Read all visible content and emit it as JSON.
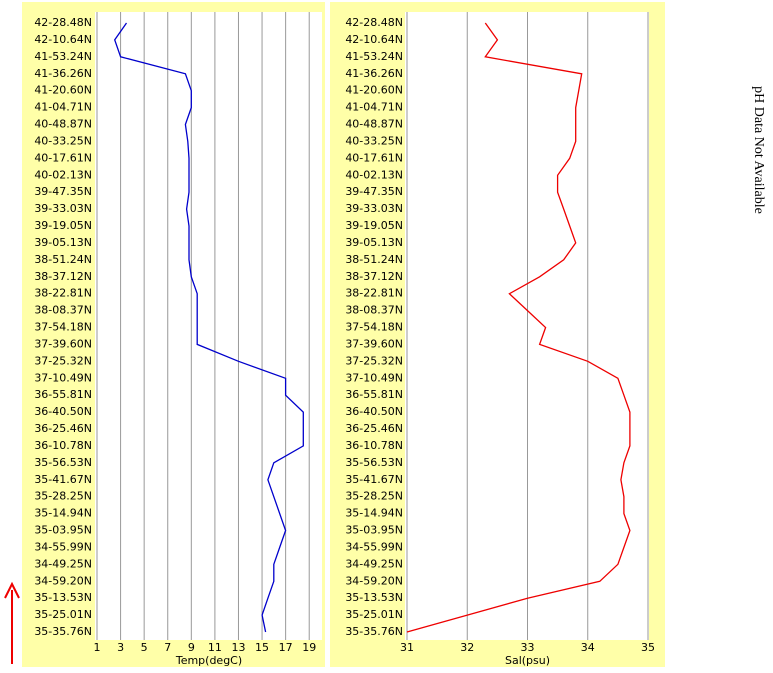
{
  "chart_data": [
    {
      "type": "line",
      "x_label": "Temp(degC)",
      "orientation": "horizontal",
      "color": "#0000cc",
      "grid": true,
      "xlim": [
        1,
        20
      ],
      "xticks": [
        1,
        3,
        5,
        7,
        9,
        11,
        13,
        15,
        17,
        19
      ],
      "categories": [
        "42-28.48N",
        "42-10.64N",
        "41-53.24N",
        "41-36.26N",
        "41-20.60N",
        "41-04.71N",
        "40-48.87N",
        "40-33.25N",
        "40-17.61N",
        "40-02.13N",
        "39-47.35N",
        "39-33.03N",
        "39-19.05N",
        "39-05.13N",
        "38-51.24N",
        "38-37.12N",
        "38-22.81N",
        "38-08.37N",
        "37-54.18N",
        "37-39.60N",
        "37-25.32N",
        "37-10.49N",
        "36-55.81N",
        "36-40.50N",
        "36-25.46N",
        "36-10.78N",
        "35-56.53N",
        "35-41.67N",
        "35-28.25N",
        "35-14.94N",
        "35-03.95N",
        "34-55.99N",
        "34-49.25N",
        "34-59.20N",
        "35-13.53N",
        "35-25.01N",
        "35-35.76N"
      ],
      "values": [
        3.5,
        2.5,
        3,
        8.5,
        9,
        9,
        8.5,
        8.7,
        8.8,
        8.8,
        8.8,
        8.6,
        8.8,
        8.8,
        8.8,
        9,
        9.5,
        9.5,
        9.5,
        9.5,
        13,
        17,
        17,
        18.5,
        18.5,
        18.5,
        16,
        15.5,
        16,
        16.5,
        17,
        16.5,
        16,
        16,
        15.5,
        15,
        15.3
      ]
    },
    {
      "type": "line",
      "x_label": "Sal(psu)",
      "orientation": "horizontal",
      "color": "#ee0000",
      "grid": true,
      "xlim": [
        31,
        35
      ],
      "xticks": [
        31,
        32,
        33,
        34,
        35
      ],
      "categories": [
        "42-28.48N",
        "42-10.64N",
        "41-53.24N",
        "41-36.26N",
        "41-20.60N",
        "41-04.71N",
        "40-48.87N",
        "40-33.25N",
        "40-17.61N",
        "40-02.13N",
        "39-47.35N",
        "39-33.03N",
        "39-19.05N",
        "39-05.13N",
        "38-51.24N",
        "38-37.12N",
        "38-22.81N",
        "38-08.37N",
        "37-54.18N",
        "37-39.60N",
        "37-25.32N",
        "37-10.49N",
        "36-55.81N",
        "36-40.50N",
        "36-25.46N",
        "36-10.78N",
        "35-56.53N",
        "35-41.67N",
        "35-28.25N",
        "35-14.94N",
        "35-03.95N",
        "34-55.99N",
        "34-49.25N",
        "34-59.20N",
        "35-13.53N",
        "35-25.01N",
        "35-35.76N"
      ],
      "values": [
        32.3,
        32.5,
        32.3,
        33.9,
        33.85,
        33.8,
        33.8,
        33.8,
        33.7,
        33.5,
        33.5,
        33.6,
        33.7,
        33.8,
        33.6,
        33.2,
        32.7,
        33.0,
        33.3,
        33.2,
        34.0,
        34.5,
        34.6,
        34.7,
        34.7,
        34.7,
        34.6,
        34.55,
        34.6,
        34.6,
        34.7,
        34.6,
        34.5,
        34.2,
        33.0,
        32.0,
        31.0
      ]
    }
  ],
  "note": "pH Data Not Available"
}
